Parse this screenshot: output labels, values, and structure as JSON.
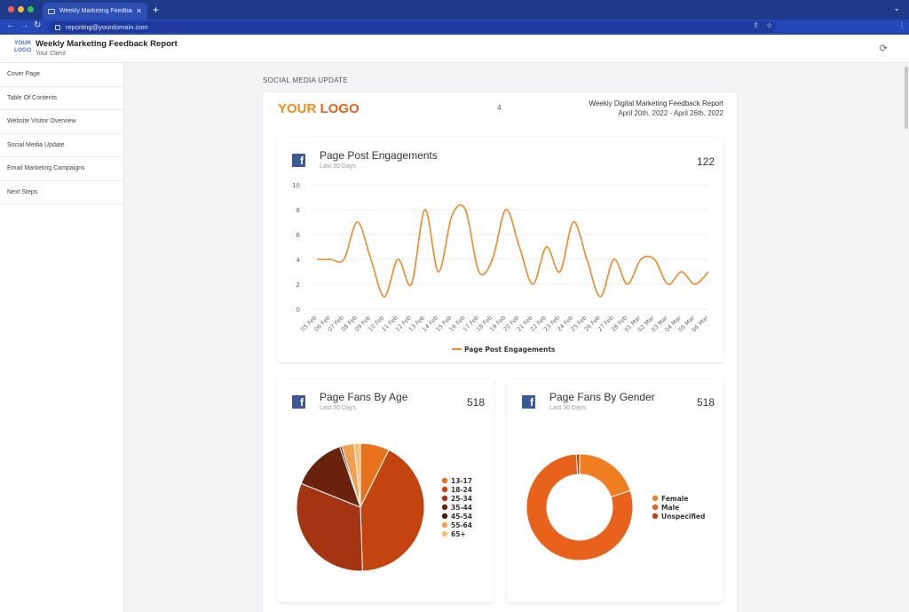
{
  "browser": {
    "tab_title": "Weekly Marketing Feedback R",
    "new_tab_label": "+",
    "address": "reporting@yourdomain.com"
  },
  "app": {
    "logo_line1": "YOUR",
    "logo_line2": "LOGO",
    "title": "Weekly Marketing Feedback Report",
    "client": "Your Client"
  },
  "sidebar": {
    "items": [
      {
        "label": "Cover Page"
      },
      {
        "label": "Table Of Contents"
      },
      {
        "label": "Website Visitor Overview"
      },
      {
        "label": "Social Media Update"
      },
      {
        "label": "Email Marketing Campaigns"
      },
      {
        "label": "Next Steps"
      }
    ]
  },
  "section_title": "SOCIAL MEDIA UPDATE",
  "page": {
    "logo_text_a": "YOUR",
    "logo_text_b": "LOGO",
    "page_number": "4",
    "report_title": "Weekly Digital Marketing Feedback Report",
    "report_dates": "April 20th, 2022 - April 26th, 2022"
  },
  "colors": {
    "accent": "#f08c1e",
    "line": "#f0892a",
    "facebook": "#3b5998"
  },
  "cards": {
    "engagements": {
      "title": "Page Post Engagements",
      "subtitle": "Last 30 Days",
      "value": "122"
    },
    "age": {
      "title": "Page Fans By Age",
      "subtitle": "Last 30 Days",
      "value": "518"
    },
    "gender": {
      "title": "Page Fans By Gender",
      "subtitle": "Last 30 Days",
      "value": "518"
    }
  },
  "chart_data": [
    {
      "type": "line",
      "x": [
        "05 Feb",
        "06 Feb",
        "07 Feb",
        "08 Feb",
        "09 Feb",
        "10 Feb",
        "11 Feb",
        "12 Feb",
        "13 Feb",
        "14 Feb",
        "15 Feb",
        "16 Feb",
        "17 Feb",
        "18 Feb",
        "19 Feb",
        "20 Feb",
        "21 Feb",
        "22 Feb",
        "23 Feb",
        "24 Feb",
        "25 Feb",
        "26 Feb",
        "27 Feb",
        "28 Feb",
        "01 Mar",
        "02 Mar",
        "03 Mar",
        "04 Mar",
        "05 Mar",
        "06 Mar"
      ],
      "series": [
        {
          "name": "Page Post Engagements",
          "values": [
            4,
            4,
            4,
            7,
            4,
            1,
            4,
            2,
            8,
            3,
            7.5,
            8,
            3,
            4,
            8,
            5,
            2,
            5,
            3,
            7,
            4,
            1,
            4,
            2,
            4,
            4,
            2,
            3,
            2,
            3
          ]
        }
      ],
      "yticks": [
        0,
        2,
        4,
        6,
        8,
        10
      ],
      "ylim": [
        0,
        10
      ],
      "grid": true,
      "legend": "bottom"
    },
    {
      "type": "pie",
      "categories": [
        "13-17",
        "18-24",
        "25-34",
        "35-44",
        "45-54",
        "55-64",
        "65+"
      ],
      "values": [
        7,
        40,
        30,
        13,
        0.5,
        3,
        1.5
      ],
      "colors": [
        "#e8731f",
        "#c4440f",
        "#a53512",
        "#6a220d",
        "#4e180a",
        "#f0a050",
        "#f3c078"
      ],
      "legend": "right"
    },
    {
      "type": "pie",
      "style": "donut",
      "categories": [
        "Female",
        "Male",
        "Unspecified"
      ],
      "values": [
        20,
        79,
        1
      ],
      "colors": [
        "#f07f22",
        "#e8621b",
        "#c4440f"
      ],
      "legend": "right"
    }
  ]
}
